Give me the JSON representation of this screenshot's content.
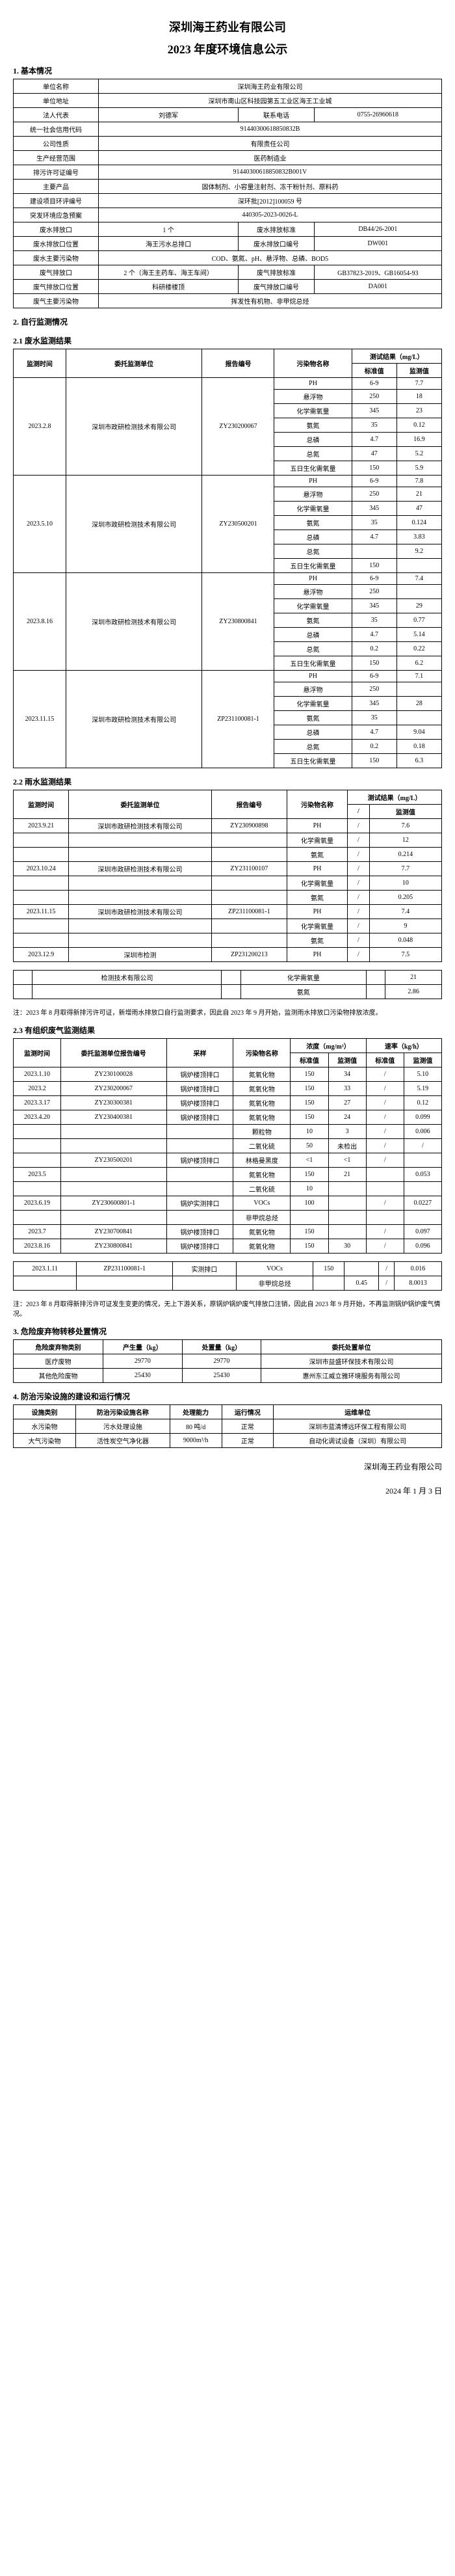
{
  "doc_title1": "深圳海王药业有限公司",
  "doc_title2": "2023 年度环境信息公示",
  "s1": {
    "heading": "1. 基本情况",
    "rows": [
      [
        "单位名称",
        "深圳海王药业有限公司",
        "",
        ""
      ],
      [
        "单位地址",
        "深圳市南山区科技园第五工业区海王工业城",
        "",
        ""
      ],
      [
        "法人代表",
        "刘德军",
        "联系电话",
        "0755-26960618"
      ],
      [
        "统一社会信用代码",
        "91440300618850832B",
        "",
        ""
      ],
      [
        "公司性质",
        "有限责任公司",
        "",
        ""
      ],
      [
        "生产经营范围",
        "医药制造业",
        "",
        ""
      ],
      [
        "排污许可证编号",
        "91440300618850832B001V",
        "",
        ""
      ],
      [
        "主要产品",
        "固体制剂、小容量注射剂、冻干粉针剂、原料药",
        "",
        ""
      ],
      [
        "建设项目环评编号",
        "深环批[2012]100059 号",
        "",
        ""
      ],
      [
        "突发环境应急预案",
        "440305-2023-0026-L",
        "",
        ""
      ],
      [
        "废水排放口",
        "1 个",
        "废水排放标准",
        "DB44/26-2001"
      ],
      [
        "废水排放口位置",
        "海王污水总排口",
        "废水排放口编号",
        "DW001"
      ],
      [
        "废水主要污染物",
        "COD、氨氮、pH、悬浮物、总磷、BOD5",
        "",
        ""
      ],
      [
        "废气排放口",
        "2 个（海王主药车、海王车间）",
        "废气排放标准",
        "GB37823-2019、GB16054-93"
      ],
      [
        "废气排放口位置",
        "科研楼楼顶",
        "废气排放口编号",
        "DA001"
      ],
      [
        "废气主要污染物",
        "挥发性有机物、非甲烷总烃",
        "",
        ""
      ]
    ]
  },
  "s2": {
    "heading": "2. 自行监测情况",
    "sub1": "2.1 废水监测结果",
    "t1_headers": [
      "监测时间",
      "委托监测单位",
      "报告编号",
      "污染物名称",
      "测试结果（mg/L）"
    ],
    "t1_sub": [
      "",
      "",
      "",
      "",
      "标准值",
      "监测值"
    ],
    "t1_data": [
      {
        "date": "2023.2.8",
        "org": "深圳市政研检测技术有限公司",
        "rep": "ZY230200067",
        "rows": [
          [
            "PH",
            "6-9",
            "7.7"
          ],
          [
            "悬浮物",
            "250",
            "18"
          ],
          [
            "化学需氧量",
            "345",
            "23"
          ],
          [
            "氨氮",
            "35",
            "0.12"
          ],
          [
            "总磷",
            "4.7",
            "16.9"
          ],
          [
            "总氮",
            "47",
            "5.2"
          ],
          [
            "五日生化需氧量",
            "150",
            "5.9"
          ]
        ]
      },
      {
        "date": "2023.5.10",
        "org": "深圳市政研检测技术有限公司",
        "rep": "ZY230500201",
        "rows": [
          [
            "PH",
            "6-9",
            "7.8"
          ],
          [
            "悬浮物",
            "250",
            "21"
          ],
          [
            "化学需氧量",
            "345",
            "47"
          ],
          [
            "氨氮",
            "35",
            "0.124"
          ],
          [
            "总磷",
            "4.7",
            "3.83"
          ],
          [
            "总氮",
            "",
            "9.2"
          ],
          [
            "五日生化需氧量",
            "150",
            ""
          ]
        ]
      },
      {
        "date": "2023.8.16",
        "org": "深圳市政研检测技术有限公司",
        "rep": "ZY230800841",
        "rows": [
          [
            "PH",
            "6-9",
            "7.4"
          ],
          [
            "悬浮物",
            "250",
            ""
          ],
          [
            "化学需氧量",
            "345",
            "29"
          ],
          [
            "氨氮",
            "35",
            "0.77"
          ],
          [
            "总磷",
            "4.7",
            "5.14"
          ],
          [
            "总氮",
            "0.2",
            "0.22"
          ],
          [
            "五日生化需氧量",
            "150",
            "6.2"
          ]
        ]
      },
      {
        "date": "2023.11.15",
        "org": "深圳市政研检测技术有限公司",
        "rep": "ZP231100081-1",
        "rows": [
          [
            "PH",
            "6-9",
            "7.1"
          ],
          [
            "悬浮物",
            "250",
            ""
          ],
          [
            "化学需氧量",
            "345",
            "28"
          ],
          [
            "氨氮",
            "35",
            ""
          ],
          [
            "总磷",
            "4.7",
            "9.04"
          ],
          [
            "总氮",
            "0.2",
            "0.18"
          ],
          [
            "五日生化需氧量",
            "150",
            "6.3"
          ]
        ]
      }
    ],
    "sub2": "2.2 雨水监测结果",
    "t2_headers": [
      "监测时间",
      "委托监测单位",
      "报告编号",
      "污染物名称",
      "测试结果（mg/L）"
    ],
    "t2_sub": [
      "",
      "",
      "",
      "",
      "/",
      "监测值"
    ],
    "t2_rows": [
      [
        "2023.9.21",
        "深圳市政研检测技术有限公司",
        "ZY230900898",
        "PH",
        "/",
        "7.6"
      ],
      [
        "",
        "",
        "",
        "化学需氧量",
        "/",
        "12"
      ],
      [
        "",
        "",
        "",
        "氨氮",
        "/",
        "0.214"
      ],
      [
        "2023.10.24",
        "深圳市政研检测技术有限公司",
        "ZY231100107",
        "PH",
        "/",
        "7.7"
      ],
      [
        "",
        "",
        "",
        "化学需氧量",
        "/",
        "10"
      ],
      [
        "",
        "",
        "",
        "氨氮",
        "/",
        "0.205"
      ],
      [
        "2023.11.15",
        "深圳市政研检测技术有限公司",
        "ZP231100081-1",
        "PH",
        "/",
        "7.4"
      ],
      [
        "",
        "",
        "",
        "化学需氧量",
        "/",
        "9"
      ],
      [
        "",
        "",
        "",
        "氨氮",
        "/",
        "0.048"
      ],
      [
        "2023.12.9",
        "深圳市检测",
        "ZP231200213",
        "PH",
        "/",
        "7.5"
      ]
    ],
    "t2_note_rows": [
      [
        "",
        "检测技术有限公司",
        "",
        "化学需氧量",
        "",
        "21"
      ],
      [
        "",
        "",
        "",
        "氨氮",
        "",
        "2.86"
      ]
    ],
    "note1": "注：2023 年 8 月取得新排污许可证，新增雨水排放口自行监测要求，因此自 2023 年 9 月开始，监测雨水排放口污染物排放浓度。",
    "sub3": "2.3 有组织废气监测结果",
    "t3_headers": [
      "监测时间",
      "委托监测单位报告编号",
      "采样",
      "污染物名称",
      "浓度（mg/m³）",
      "速率（kg/h）"
    ],
    "t3_sub": [
      "",
      "",
      "",
      "",
      "标准值",
      "监测值",
      "标准值",
      "监测值"
    ],
    "t3_rows": [
      [
        "2023.1.10",
        "ZY230100028",
        "锅炉楼顶排口",
        "氮氧化物",
        "150",
        "34",
        "/",
        "5.10"
      ],
      [
        "2023.2",
        "ZY230200067",
        "锅炉楼顶排口",
        "氮氧化物",
        "150",
        "33",
        "/",
        "5.19"
      ],
      [
        "2023.3.17",
        "ZY230300381",
        "锅炉楼顶排口",
        "氮氧化物",
        "150",
        "27",
        "/",
        "0.12"
      ],
      [
        "2023.4.20",
        "ZY230400381",
        "锅炉楼顶排口",
        "氮氧化物",
        "150",
        "24",
        "/",
        "0.099"
      ],
      [
        "",
        "",
        "",
        "颗粒物",
        "10",
        "3",
        "/",
        "0.006"
      ],
      [
        "",
        "",
        "",
        "二氧化硫",
        "50",
        "未检出",
        "/",
        "/"
      ],
      [
        "",
        "ZY230500201",
        "锅炉楼顶排口",
        "林格曼黑度",
        "<1",
        "<1",
        "/",
        ""
      ],
      [
        "2023.5",
        "",
        "",
        "氮氧化物",
        "150",
        "21",
        "",
        "0.053"
      ],
      [
        "",
        "",
        "",
        "二氧化硫",
        "10",
        "",
        "",
        ""
      ],
      [
        "2023.6.19",
        "ZY230600801-1",
        "锅炉实测排口",
        "VOCs",
        "100",
        "",
        "/",
        "0.0227"
      ],
      [
        "",
        "",
        "",
        "非甲烷总烃",
        "",
        "",
        "",
        ""
      ],
      [
        "2023.7",
        "ZY230700841",
        "锅炉楼顶排口",
        "氮氧化物",
        "150",
        "",
        "/",
        "0.097"
      ],
      [
        "2023.8.16",
        "ZY230800841",
        "锅炉楼顶排口",
        "氮氧化物",
        "150",
        "30",
        "/",
        "0.096"
      ]
    ],
    "t3_extra": [
      [
        "2023.1.11",
        "ZP231100081-1",
        "实测排口",
        "VOCs",
        "150",
        "",
        "/",
        "0.016"
      ],
      [
        "",
        "",
        "",
        "非甲烷总烃",
        "",
        "0.45",
        "/",
        "8.0013"
      ]
    ],
    "note2": "注：2023 年 8 月取得新排污许可证发生变更的情况，无上下游关系，原锅炉锅炉废气排放口注销，因此自 2023 年 9 月开始，不再监测锅炉锅炉废气情况。"
  },
  "s3": {
    "heading": "3. 危险废弃物转移处置情况",
    "headers": [
      "危险废弃物类别",
      "产生量（kg）",
      "处置量（kg）",
      "委托处置单位"
    ],
    "rows": [
      [
        "医疗废物",
        "29770",
        "29770",
        "深圳市益盛环保技术有限公司"
      ],
      [
        "其他危险废物",
        "25430",
        "25430",
        "惠州东江威立雅环境服务有限公司"
      ]
    ]
  },
  "s4": {
    "heading": "4. 防治污染设施的建设和运行情况",
    "headers": [
      "设施类别",
      "防治污染设施名称",
      "处理能力",
      "运行情况",
      "运维单位"
    ],
    "rows": [
      [
        "水污染物",
        "污水处理设施",
        "80 吨/d",
        "正常",
        "深圳市蓝清博远环保工程有限公司"
      ],
      [
        "大气污染物",
        "活性炭空气净化器",
        "9000m³/h",
        "正常",
        "自动化调试设备（深圳）有限公司"
      ]
    ]
  },
  "footer1": "深圳海王药业有限公司",
  "footer2": "2024 年 1 月 3 日"
}
